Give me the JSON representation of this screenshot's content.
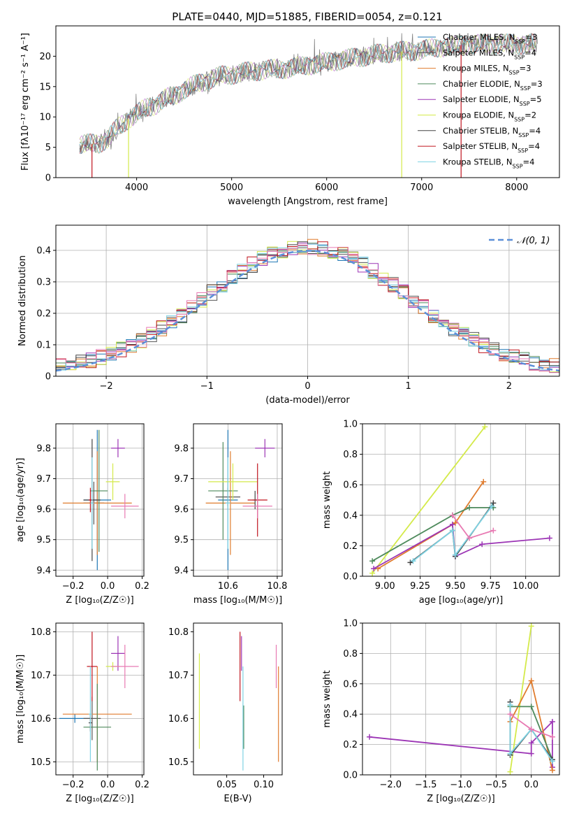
{
  "figure_title": "PLATE=0440, MJD=51885, FIBERID=0054, z=0.121",
  "colors": {
    "Chabrier MILES": "#1f77b4",
    "Salpeter MILES": "#555555",
    "Kroupa MILES": "#e07c2e",
    "Chabrier ELODIE": "#4e8a5c",
    "Salpeter ELODIE": "#9c35b5",
    "Kroupa ELODIE": "#d4ea4a",
    "Chabrier STELIB": "#444444",
    "Salpeter STELIB": "#c0141e",
    "Kroupa STELIB": "#7ed3e3",
    "pink": "#e87ab3",
    "gaussian": "#5b8fd8"
  },
  "chart_data": [
    {
      "id": "spectrum",
      "type": "line",
      "title": "PLATE=0440, MJD=51885, FIBERID=0054, z=0.121",
      "xlabel": "wavelength [Angstrom, rest frame]",
      "ylabel": "Flux [fλ10⁻¹⁷ erg cm⁻² s⁻¹ A⁻¹]",
      "xlim": [
        3150,
        8450
      ],
      "ylim": [
        0,
        25
      ],
      "xticks": [
        4000,
        5000,
        6000,
        7000,
        8000
      ],
      "yticks": [
        0,
        5,
        10,
        15,
        20
      ],
      "legend_position": "top-right",
      "legend": [
        {
          "name": "Chabrier MILES",
          "nssp": "3"
        },
        {
          "name": "Salpeter MILES",
          "nssp": "4"
        },
        {
          "name": "Kroupa MILES",
          "nssp": "3"
        },
        {
          "name": "Chabrier ELODIE",
          "nssp": "3"
        },
        {
          "name": "Salpeter ELODIE",
          "nssp": "5"
        },
        {
          "name": "Kroupa ELODIE",
          "nssp": "2"
        },
        {
          "name": "Chabrier STELIB",
          "nssp": "4"
        },
        {
          "name": "Salpeter STELIB",
          "nssp": "4"
        },
        {
          "name": "Kroupa STELIB",
          "nssp": "4"
        }
      ],
      "continuum": [
        [
          3400,
          5.5
        ],
        [
          3600,
          5.6
        ],
        [
          3700,
          6.5
        ],
        [
          3800,
          8.2
        ],
        [
          3900,
          9.5
        ],
        [
          4000,
          10.5
        ],
        [
          4100,
          11.5
        ],
        [
          4200,
          12.0
        ],
        [
          4300,
          13.0
        ],
        [
          4400,
          13.5
        ],
        [
          4500,
          14.5
        ],
        [
          4600,
          15.2
        ],
        [
          4700,
          15.8
        ],
        [
          4800,
          16.3
        ],
        [
          4900,
          16.8
        ],
        [
          5000,
          17.0
        ],
        [
          5200,
          17.5
        ],
        [
          5400,
          17.8
        ],
        [
          5600,
          18.0
        ],
        [
          5800,
          18.5
        ],
        [
          6000,
          19.0
        ],
        [
          6200,
          19.5
        ],
        [
          6400,
          20.0
        ],
        [
          6600,
          20.5
        ],
        [
          6800,
          20.8
        ],
        [
          7000,
          21.0
        ],
        [
          7200,
          21.5
        ],
        [
          7400,
          21.8
        ],
        [
          7600,
          22.0
        ],
        [
          7800,
          22.0
        ],
        [
          8000,
          22.0
        ],
        [
          8200,
          22.0
        ]
      ],
      "dropouts": [
        {
          "x": 3530,
          "series": "Salpeter STELIB"
        },
        {
          "x": 3915,
          "series": "Kroupa ELODIE"
        },
        {
          "x": 6790,
          "series": "Kroupa ELODIE"
        },
        {
          "x": 7415,
          "series": "Salpeter STELIB"
        }
      ]
    },
    {
      "id": "residuals",
      "type": "step",
      "xlabel": "(data-model)/error",
      "ylabel": "Normed distribution",
      "xlim": [
        -2.5,
        2.5
      ],
      "ylim": [
        0,
        0.48
      ],
      "xticks": [
        -2,
        -1,
        0,
        1,
        2
      ],
      "xtick_labels": [
        "−2",
        "−1",
        "0",
        "1",
        "2"
      ],
      "yticks": [
        0.0,
        0.1,
        0.2,
        0.3,
        0.4
      ],
      "legend": "𝒩(0, 1)",
      "legend_position": "top-right",
      "gaussian_mean": 0,
      "gaussian_sigma": 1,
      "bin_width": 0.1
    },
    {
      "id": "age-vs-Z",
      "type": "errorbar",
      "xlabel": "Z [log₁₀(Z/Z☉)]",
      "ylabel": "age  [log₁₀(age/yr)]",
      "xlim": [
        -0.3,
        0.21
      ],
      "ylim": [
        9.38,
        9.88
      ],
      "xticks": [
        -0.2,
        0.0,
        0.2
      ],
      "xtick_labels": [
        "−0.2",
        "0.0",
        "0.2"
      ],
      "yticks": [
        9.4,
        9.5,
        9.6,
        9.7,
        9.8
      ],
      "points": [
        {
          "series": "Chabrier MILES",
          "x": -0.06,
          "xerr": 0.08,
          "y": 9.63,
          "yerr": 0.23
        },
        {
          "series": "Salpeter MILES",
          "x": -0.08,
          "xerr": 0.06,
          "y": 9.62,
          "yerr": 0.07
        },
        {
          "series": "Kroupa MILES",
          "x": -0.06,
          "xerr": 0.2,
          "y": 9.62,
          "yerr": 0.17
        },
        {
          "series": "Chabrier ELODIE",
          "x": -0.05,
          "xerr": 0.05,
          "y": 9.66,
          "yerr": 0.2
        },
        {
          "series": "Salpeter ELODIE",
          "x": 0.06,
          "xerr": 0.04,
          "y": 9.8,
          "yerr": 0.03
        },
        {
          "series": "Kroupa ELODIE",
          "x": 0.03,
          "xerr": 0.04,
          "y": 9.69,
          "yerr": 0.06
        },
        {
          "series": "Chabrier STELIB",
          "x": -0.09,
          "xerr": 0.05,
          "y": 9.63,
          "yerr": 0.2
        },
        {
          "series": "Salpeter STELIB",
          "x": -0.1,
          "xerr": 0.01,
          "y": 9.63,
          "yerr": 0.04
        },
        {
          "series": "Kroupa STELIB",
          "x": -0.09,
          "xerr": 0.01,
          "y": 9.62,
          "yerr": 0.15
        },
        {
          "series": "pink",
          "x": 0.1,
          "xerr": 0.08,
          "y": 9.61,
          "yerr": 0.04
        }
      ]
    },
    {
      "id": "age-vs-mass",
      "type": "errorbar",
      "xlabel": "mass [log₁₀(M/M☉)]",
      "ylabel": "",
      "xlim": [
        10.46,
        10.82
      ],
      "ylim": [
        9.38,
        9.88
      ],
      "xticks": [
        10.6,
        10.8
      ],
      "yticks": [
        9.4,
        9.5,
        9.6,
        9.7,
        9.8
      ],
      "points": [
        {
          "series": "Chabrier MILES",
          "x": 10.6,
          "xerr": 0.04,
          "y": 9.63,
          "yerr": 0.23
        },
        {
          "series": "Salpeter MILES",
          "x": 10.6,
          "xerr": 0.05,
          "y": 9.64,
          "yerr": 0.03
        },
        {
          "series": "Kroupa MILES",
          "x": 10.61,
          "xerr": 0.1,
          "y": 9.62,
          "yerr": 0.17
        },
        {
          "series": "Chabrier ELODIE",
          "x": 10.58,
          "xerr": 0.06,
          "y": 9.66,
          "yerr": 0.16
        },
        {
          "series": "Salpeter ELODIE",
          "x": 10.75,
          "xerr": 0.04,
          "y": 9.8,
          "yerr": 0.03
        },
        {
          "series": "Kroupa ELODIE",
          "x": 10.62,
          "xerr": 0.1,
          "y": 9.69,
          "yerr": 0.06
        },
        {
          "series": "Chabrier STELIB",
          "x": 10.71,
          "xerr": 0.01,
          "y": 9.63,
          "yerr": 0.03
        },
        {
          "series": "Salpeter STELIB",
          "x": 10.72,
          "xerr": 0.04,
          "y": 9.63,
          "yerr": 0.12
        },
        {
          "series": "Kroupa STELIB",
          "x": 10.6,
          "xerr": 0.01,
          "y": 9.62,
          "yerr": 0.15
        },
        {
          "series": "pink",
          "x": 10.72,
          "xerr": 0.06,
          "y": 9.61,
          "yerr": 0.04
        }
      ]
    },
    {
      "id": "weight-vs-age",
      "type": "line",
      "xlabel": "age  [log₁₀(age/yr)]",
      "ylabel": "mass weight",
      "xlim": [
        8.84,
        10.24
      ],
      "ylim": [
        0,
        1
      ],
      "xticks": [
        9.0,
        9.25,
        9.5,
        9.75,
        10.0
      ],
      "xtick_labels": [
        "9.00",
        "9.25",
        "9.50",
        "9.75",
        "10.00"
      ],
      "yticks": [
        0,
        0.2,
        0.4,
        0.6,
        0.8,
        1.0
      ],
      "ytick_labels": [
        "0.0",
        "0.2",
        "0.4",
        "0.6",
        "0.8",
        "1.0"
      ],
      "series": [
        {
          "name": "Kroupa ELODIE",
          "x": [
            8.91,
            9.71
          ],
          "y": [
            0.02,
            0.98
          ]
        },
        {
          "name": "Kroupa MILES",
          "x": [
            8.95,
            9.5,
            9.7
          ],
          "y": [
            0.05,
            0.35,
            0.62
          ]
        },
        {
          "name": "Salpeter ELODIE",
          "x": [
            8.92,
            9.48,
            9.5,
            9.69,
            10.17
          ],
          "y": [
            0.05,
            0.34,
            0.13,
            0.21,
            0.25
          ]
        },
        {
          "name": "Chabrier ELODIE",
          "x": [
            8.91,
            9.48,
            9.6,
            9.77
          ],
          "y": [
            0.1,
            0.4,
            0.45,
            0.45
          ]
        },
        {
          "name": "Chabrier STELIB",
          "x": [
            9.18,
            9.48,
            9.5,
            9.77
          ],
          "y": [
            0.09,
            0.3,
            0.13,
            0.48
          ]
        },
        {
          "name": "Kroupa STELIB",
          "x": [
            9.2,
            9.48,
            9.5,
            9.76
          ],
          "y": [
            0.1,
            0.3,
            0.14,
            0.46
          ]
        },
        {
          "name": "pink",
          "x": [
            9.48,
            9.6,
            9.77
          ],
          "y": [
            0.4,
            0.25,
            0.3
          ]
        }
      ]
    },
    {
      "id": "mass-vs-Z",
      "type": "errorbar",
      "xlabel": "Z [log₁₀(Z/Z☉)]",
      "ylabel": "mass [log₁₀(M/M☉)]",
      "xlim": [
        -0.3,
        0.21
      ],
      "ylim": [
        10.47,
        10.82
      ],
      "xticks": [
        -0.2,
        0.0,
        0.2
      ],
      "xtick_labels": [
        "−0.2",
        "0.0",
        "0.2"
      ],
      "yticks": [
        10.5,
        10.6,
        10.7,
        10.8
      ],
      "points": [
        {
          "series": "Chabrier MILES",
          "x": -0.19,
          "xerr": 0.09,
          "y": 10.6,
          "yerr": 0.01
        },
        {
          "series": "Salpeter MILES",
          "x": -0.09,
          "xerr": 0.05,
          "y": 10.6,
          "yerr": 0.05
        },
        {
          "series": "Kroupa MILES",
          "x": -0.06,
          "xerr": 0.2,
          "y": 10.61,
          "yerr": 0.11
        },
        {
          "series": "Chabrier ELODIE",
          "x": -0.06,
          "xerr": 0.08,
          "y": 10.58,
          "yerr": 0.1
        },
        {
          "series": "Salpeter ELODIE",
          "x": 0.06,
          "xerr": 0.04,
          "y": 10.75,
          "yerr": 0.04
        },
        {
          "series": "Kroupa ELODIE",
          "x": 0.03,
          "xerr": 0.04,
          "y": 10.72,
          "yerr": 0.01
        },
        {
          "series": "Chabrier STELIB",
          "x": -0.1,
          "xerr": 0.01,
          "y": 10.59,
          "yerr": 0.02
        },
        {
          "series": "Salpeter STELIB",
          "x": -0.09,
          "xerr": 0.03,
          "y": 10.72,
          "yerr": 0.08
        },
        {
          "series": "Kroupa STELIB",
          "x": -0.1,
          "xerr": 0.01,
          "y": 10.61,
          "yerr": 0.11
        },
        {
          "series": "pink",
          "x": 0.1,
          "xerr": 0.08,
          "y": 10.72,
          "yerr": 0.05
        }
      ]
    },
    {
      "id": "mass-vs-ebv",
      "type": "errorbar",
      "xlabel": "E(B-V)",
      "ylabel": "",
      "xlim": [
        0.005,
        0.125
      ],
      "ylim": [
        10.47,
        10.82
      ],
      "xticks": [
        0.05,
        0.1
      ],
      "xtick_labels": [
        "0.05",
        "0.10"
      ],
      "yticks": [
        10.5,
        10.6,
        10.7,
        10.8
      ],
      "points": [
        {
          "series": "Kroupa ELODIE",
          "x": 0.013,
          "y": 10.64,
          "yerr": 0.11
        },
        {
          "series": "Salpeter STELIB",
          "x": 0.068,
          "y": 10.72,
          "yerr": 0.08
        },
        {
          "series": "Salpeter ELODIE",
          "x": 0.07,
          "y": 10.75,
          "yerr": 0.04
        },
        {
          "series": "Chabrier ELODIE",
          "x": 0.073,
          "y": 10.58,
          "yerr": 0.05
        },
        {
          "series": "Kroupa STELIB",
          "x": 0.072,
          "y": 10.6,
          "yerr": 0.12
        },
        {
          "series": "pink",
          "x": 0.117,
          "y": 10.72,
          "yerr": 0.05
        },
        {
          "series": "Kroupa MILES",
          "x": 0.12,
          "y": 10.61,
          "yerr": 0.11
        }
      ]
    },
    {
      "id": "weight-vs-Z",
      "type": "line",
      "xlabel": "Z [log₁₀(Z/Z☉)]",
      "ylabel": "mass weight",
      "xlim": [
        -2.4,
        0.4
      ],
      "ylim": [
        0,
        1
      ],
      "xticks": [
        -2.0,
        -1.5,
        -1.0,
        -0.5,
        0.0
      ],
      "xtick_labels": [
        "−2.0",
        "−1.5",
        "−1.0",
        "−0.5",
        "0.0"
      ],
      "yticks": [
        0,
        0.2,
        0.4,
        0.6,
        0.8,
        1.0
      ],
      "ytick_labels": [
        "0.0",
        "0.2",
        "0.4",
        "0.6",
        "0.8",
        "1.0"
      ],
      "series": [
        {
          "name": "Salpeter ELODIE",
          "x": [
            -2.3,
            0.0,
            0.0,
            0.3,
            0.3
          ],
          "y": [
            0.25,
            0.14,
            0.21,
            0.35,
            0.05
          ]
        },
        {
          "name": "Kroupa ELODIE",
          "x": [
            -0.3,
            0.0
          ],
          "y": [
            0.02,
            0.98
          ]
        },
        {
          "name": "Kroupa MILES",
          "x": [
            -0.3,
            0.0,
            0.3
          ],
          "y": [
            0.35,
            0.62,
            0.03
          ]
        },
        {
          "name": "Chabrier ELODIE",
          "x": [
            -0.3,
            0.0,
            0.3
          ],
          "y": [
            0.45,
            0.45,
            0.1
          ]
        },
        {
          "name": "Chabrier STELIB",
          "x": [
            -0.3,
            -0.3,
            0.0,
            0.3
          ],
          "y": [
            0.48,
            0.13,
            0.3,
            0.1
          ]
        },
        {
          "name": "Kroupa STELIB",
          "x": [
            -0.3,
            -0.3,
            0.0,
            0.3
          ],
          "y": [
            0.46,
            0.14,
            0.3,
            0.09
          ]
        },
        {
          "name": "pink",
          "x": [
            -0.3,
            0.0,
            0.3
          ],
          "y": [
            0.4,
            0.3,
            0.25
          ]
        }
      ]
    }
  ]
}
